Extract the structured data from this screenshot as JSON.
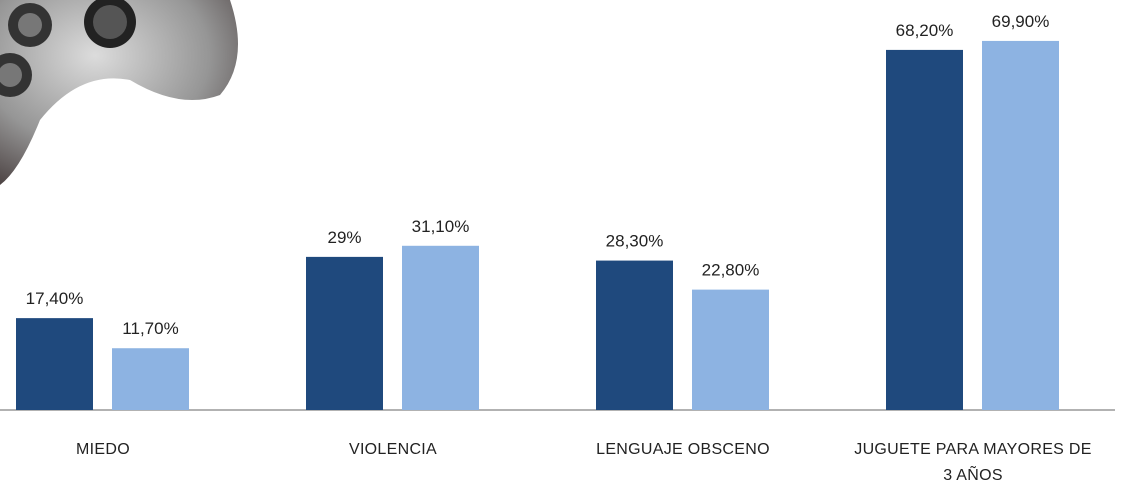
{
  "chart_data": {
    "type": "bar",
    "categories": [
      "MIEDO",
      "VIOLENCIA",
      "LENGUAJE OBSCENO",
      "JUGUETE PARA MAYORES DE 3 AÑOS"
    ],
    "series": [
      {
        "color": "#1f497d",
        "values": [
          17.4,
          29,
          28.3,
          68.2
        ],
        "value_labels": [
          "17,40%",
          "29%",
          "28,30%",
          "68,20%"
        ]
      },
      {
        "color": "#8db3e2",
        "values": [
          11.7,
          31.1,
          22.8,
          69.9
        ],
        "value_labels": [
          "11,70%",
          "31,10%",
          "22,80%",
          "69,90%"
        ]
      }
    ]
  }
}
